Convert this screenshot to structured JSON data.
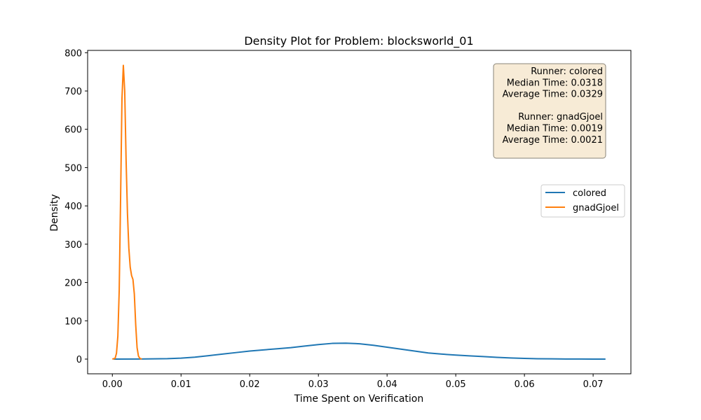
{
  "chart_data": {
    "type": "line",
    "title": "Density Plot for Problem: blocksworld_01",
    "xlabel": "Time Spent on Verification",
    "ylabel": "Density",
    "xlim": [
      -0.0036,
      0.0755
    ],
    "ylim": [
      -38.4,
      806
    ],
    "xticks": [
      0.0,
      0.01,
      0.02,
      0.03,
      0.04,
      0.05,
      0.06,
      0.07
    ],
    "xtick_labels": [
      "0.00",
      "0.01",
      "0.02",
      "0.03",
      "0.04",
      "0.05",
      "0.06",
      "0.07"
    ],
    "yticks": [
      0,
      100,
      200,
      300,
      400,
      500,
      600,
      700,
      800
    ],
    "ytick_labels": [
      "0",
      "100",
      "200",
      "300",
      "400",
      "500",
      "600",
      "700",
      "800"
    ],
    "grid": false,
    "legend_position": "center-right",
    "series": [
      {
        "name": "colored",
        "color": "#1f77b4",
        "x": [
          0.0002,
          0.004,
          0.008,
          0.01,
          0.012,
          0.014,
          0.016,
          0.018,
          0.02,
          0.022,
          0.024,
          0.026,
          0.028,
          0.03,
          0.032,
          0.034,
          0.036,
          0.038,
          0.04,
          0.042,
          0.044,
          0.046,
          0.048,
          0.05,
          0.052,
          0.054,
          0.056,
          0.058,
          0.06,
          0.062,
          0.064,
          0.066,
          0.068,
          0.07,
          0.0718
        ],
        "y": [
          0.1,
          0.3,
          1.2,
          2.5,
          5,
          9,
          13,
          17,
          21,
          24,
          27,
          30,
          34,
          38,
          41,
          41.5,
          40,
          36,
          31,
          26,
          21,
          16,
          13,
          10.5,
          8.5,
          6.5,
          4.5,
          3,
          1.8,
          1,
          0.6,
          0.3,
          0.15,
          0.05,
          0.02
        ]
      },
      {
        "name": "gnadGjoel",
        "color": "#ff7f0e",
        "x": [
          0.0,
          0.0004,
          0.0006,
          0.0008,
          0.001,
          0.0012,
          0.0014,
          0.0016,
          0.0018,
          0.002,
          0.0022,
          0.0024,
          0.0026,
          0.0028,
          0.003,
          0.0032,
          0.0034,
          0.0036,
          0.0038,
          0.004,
          0.0043
        ],
        "y": [
          0,
          2,
          15,
          60,
          180,
          420,
          680,
          767,
          700,
          520,
          380,
          290,
          240,
          218,
          208,
          170,
          90,
          30,
          8,
          2,
          0
        ]
      }
    ],
    "annotation": {
      "lines": [
        "Runner: colored",
        "Median Time: 0.0318",
        "Average Time: 0.0329",
        "",
        "Runner: gnadGjoel",
        "Median Time: 0.0019",
        "Average Time: 0.0021"
      ],
      "background": "#f7ebd6",
      "border": "#8a8478"
    }
  }
}
